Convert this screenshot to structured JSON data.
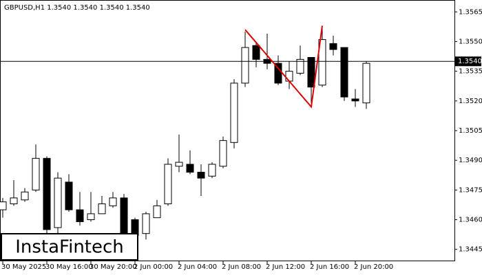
{
  "chart_data": {
    "type": "candlestick",
    "title": "GBPUSD,H1  1.3540 1.3540 1.3540 1.3540",
    "categories": [
      "30 May 2025",
      null,
      null,
      null,
      "30 May 16:00",
      null,
      null,
      null,
      "30 May 20:00",
      null,
      null,
      null,
      "2 Jun 00:00",
      null,
      null,
      null,
      "2 Jun 04:00",
      null,
      null,
      null,
      "2 Jun 08:00",
      null,
      null,
      null,
      "2 Jun 12:00",
      null,
      null,
      null,
      "2 Jun 16:00",
      null,
      null,
      null,
      "2 Jun 20:00",
      null
    ],
    "open": [
      1.3465,
      1.3468,
      1.347,
      1.3475,
      1.3491,
      1.3456,
      1.3479,
      1.3465,
      1.346,
      1.3463,
      1.3467,
      1.3471,
      1.346,
      1.3453,
      1.3461,
      1.3468,
      1.3487,
      1.3488,
      1.3484,
      1.3482,
      1.3487,
      1.3499,
      1.3529,
      1.3548,
      1.3541,
      1.3539,
      1.353,
      1.3534,
      1.3542,
      1.3528,
      1.3549,
      1.3547,
      1.3521,
      1.3519
    ],
    "high": [
      1.3471,
      1.348,
      1.3476,
      1.3498,
      1.3492,
      1.3484,
      1.3483,
      1.3474,
      1.3474,
      1.3472,
      1.3474,
      1.3473,
      1.3461,
      1.3464,
      1.347,
      1.3491,
      1.3503,
      1.3495,
      1.3488,
      1.3489,
      1.3502,
      1.3531,
      1.3555,
      1.355,
      1.3554,
      1.3543,
      1.354,
      1.3548,
      1.3542,
      1.3557,
      1.3553,
      1.3547,
      1.3526,
      1.354
    ],
    "low": [
      1.3461,
      1.3467,
      1.3469,
      1.3474,
      1.345,
      1.3453,
      1.3464,
      1.3457,
      1.3459,
      1.3463,
      1.3466,
      1.345,
      1.3448,
      1.345,
      1.3461,
      1.3467,
      1.3484,
      1.3483,
      1.3472,
      1.3481,
      1.3486,
      1.3496,
      1.3527,
      1.3537,
      1.3536,
      1.3528,
      1.3526,
      1.3533,
      1.3519,
      1.3527,
      1.3543,
      1.352,
      1.3517,
      1.3516
    ],
    "close": [
      1.3469,
      1.3471,
      1.3474,
      1.3491,
      1.3455,
      1.3481,
      1.3465,
      1.3459,
      1.3463,
      1.3468,
      1.3471,
      1.3453,
      1.3452,
      1.3463,
      1.3467,
      1.3488,
      1.3489,
      1.3484,
      1.3481,
      1.3488,
      1.35,
      1.3529,
      1.3547,
      1.3541,
      1.3539,
      1.3529,
      1.3535,
      1.3541,
      1.3527,
      1.3551,
      1.3546,
      1.3522,
      1.352,
      1.3539
    ],
    "up_color": "#ffffff",
    "down_color": "#000000",
    "ylim": [
      1.3439,
      1.3571
    ],
    "yticks": [
      1.3565,
      {
        "value": 1.355,
        "label": "1.3550"
      },
      1.3535,
      {
        "value": 1.352,
        "label": "1.3520"
      },
      1.3505,
      {
        "value": 1.349,
        "label": "1.3490"
      },
      1.3475,
      {
        "value": 1.346,
        "label": "1.3460"
      },
      1.3445
    ],
    "price_line": {
      "value": 1.354,
      "label": "1.3540"
    },
    "pattern": {
      "color": "#e00000",
      "x": [
        22,
        28,
        29
      ],
      "values": [
        1.3556,
        1.3517,
        1.3558
      ]
    },
    "logo": "InstaFintech"
  }
}
